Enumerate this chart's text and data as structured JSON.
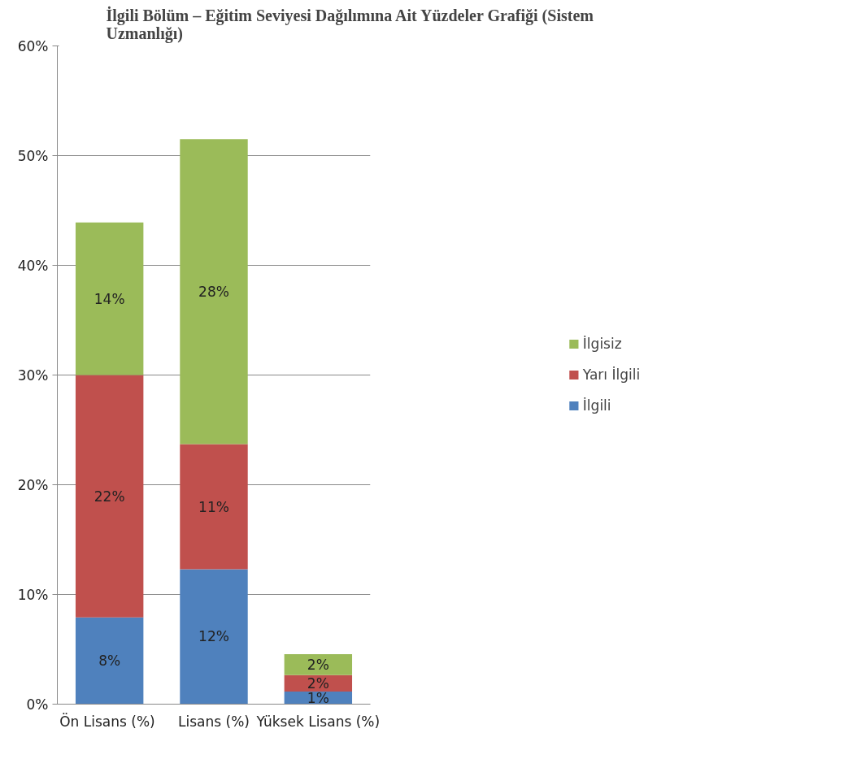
{
  "chart_data": {
    "type": "bar",
    "stacked": true,
    "title": "İlgili Bölüm – Eğitim Seviyesi Dağılımına Ait Yüzdeler Grafiği (Sistem\nUzmanlığı)",
    "categories": [
      "Ön  Lisans (%)",
      "Lisans (%)",
      "Yüksek Lisans (%)"
    ],
    "series": [
      {
        "name": "İlgili",
        "color": "#4f81bd",
        "values": [
          7.9,
          12.3,
          1.15
        ],
        "value_labels": [
          "8%",
          "12%",
          "1%"
        ]
      },
      {
        "name": "Yarı İlgili",
        "color": "#c0504d",
        "values": [
          22.1,
          11.4,
          1.5
        ],
        "value_labels": [
          "22%",
          "11%",
          "2%"
        ]
      },
      {
        "name": "İlgisiz",
        "color": "#9bbb59",
        "values": [
          13.9,
          27.8,
          1.9
        ],
        "value_labels": [
          "14%",
          "28%",
          "2%"
        ]
      }
    ],
    "ylim": [
      0,
      60
    ],
    "yticks": [
      {
        "value": 0,
        "label": "0%"
      },
      {
        "value": 10,
        "label": "10%"
      },
      {
        "value": 20,
        "label": "20%"
      },
      {
        "value": 30,
        "label": "30%"
      },
      {
        "value": 40,
        "label": "40%"
      },
      {
        "value": 50,
        "label": "50%"
      },
      {
        "value": 60,
        "label": "60%"
      }
    ],
    "grid": "y",
    "legend": "right"
  }
}
